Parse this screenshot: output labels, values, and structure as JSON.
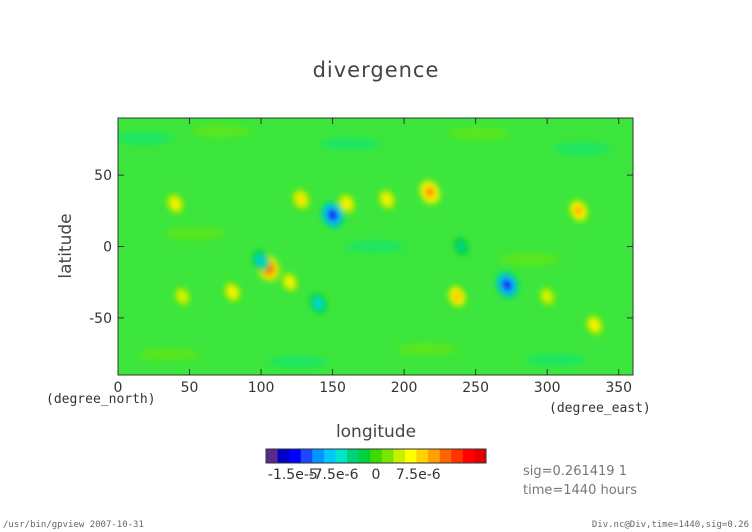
{
  "chart_data": {
    "type": "heatmap",
    "title": "divergence",
    "xlabel": "longitude",
    "ylabel": "latitude",
    "x_unit": "(degree_east)",
    "y_unit": "(degree_north)",
    "xlim": [
      0,
      360
    ],
    "ylim": [
      -90,
      90
    ],
    "x_ticks": [
      "0",
      "50",
      "100",
      "150",
      "200",
      "250",
      "300",
      "350"
    ],
    "y_ticks": [
      "50",
      "0",
      "-50"
    ],
    "colorbar": {
      "colors": [
        "#5a2a8a",
        "#0000c8",
        "#0000ff",
        "#1e46ff",
        "#0096ff",
        "#00c8ff",
        "#00e6c8",
        "#00d278",
        "#00d23c",
        "#3cdc00",
        "#78e600",
        "#c8f000",
        "#ffff00",
        "#ffd200",
        "#ffa000",
        "#ff6400",
        "#ff3200",
        "#ff0000",
        "#e60000"
      ],
      "tick_labels": [
        "-1.5e-5",
        "-7.5e-6",
        "0",
        "7.5e-6"
      ],
      "range": [
        -1.875e-05,
        1.875e-05
      ]
    },
    "features": [
      {
        "lon": 150,
        "lat": 22,
        "value": -1.5e-05
      },
      {
        "lon": 272,
        "lat": -27,
        "value": -1.5e-05
      },
      {
        "lon": 105,
        "lat": -15,
        "value": 1.5e-05
      },
      {
        "lon": 218,
        "lat": 38,
        "value": 1.2e-05
      },
      {
        "lon": 322,
        "lat": 25,
        "value": 1.1e-05
      },
      {
        "lon": 237,
        "lat": -35,
        "value": 1e-05
      },
      {
        "lon": 128,
        "lat": 33,
        "value": 9e-06
      },
      {
        "lon": 160,
        "lat": 30,
        "value": 8e-06
      },
      {
        "lon": 188,
        "lat": 33,
        "value": 8e-06
      },
      {
        "lon": 40,
        "lat": 30,
        "value": 8e-06
      },
      {
        "lon": 80,
        "lat": -32,
        "value": 8e-06
      },
      {
        "lon": 333,
        "lat": -55,
        "value": 8e-06
      },
      {
        "lon": 120,
        "lat": -25,
        "value": 7e-06
      },
      {
        "lon": 140,
        "lat": -40,
        "value": -8e-06
      },
      {
        "lon": 100,
        "lat": -10,
        "value": -9e-06
      },
      {
        "lon": 45,
        "lat": -35,
        "value": 6e-06
      },
      {
        "lon": 240,
        "lat": 0,
        "value": -5e-06
      },
      {
        "lon": 300,
        "lat": -35,
        "value": 6e-06
      }
    ]
  },
  "info": {
    "sig": "sig=0.261419  1",
    "time": "time=1440 hours"
  },
  "footer": {
    "left": "/usr/bin/gpview   2007-10-31",
    "right": "Div.nc@Div,time=1440,sig=0.26"
  }
}
